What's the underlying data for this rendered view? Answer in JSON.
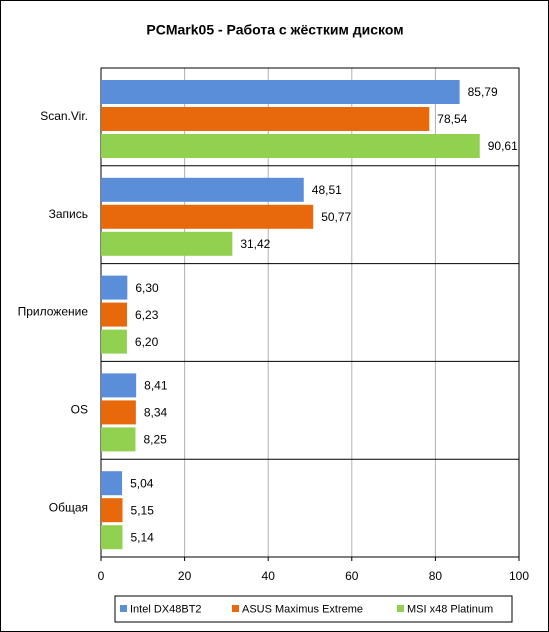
{
  "chart_data": {
    "type": "bar",
    "orientation": "horizontal",
    "title": "PCMark05 - Работа с жёстким диском",
    "categories": [
      "Scan.Vir.",
      "Запись",
      "Приложение",
      "OS",
      "Общая"
    ],
    "series": [
      {
        "name": "Intel DX48BT2",
        "color": "#5a8ed8",
        "values": [
          85.79,
          48.51,
          6.3,
          8.41,
          5.04
        ],
        "value_labels": [
          "85,79",
          "48,51",
          "6,30",
          "8,41",
          "5,04"
        ]
      },
      {
        "name": "ASUS Maximus Extreme",
        "color": "#e8690b",
        "values": [
          78.54,
          50.77,
          6.23,
          8.34,
          5.15
        ],
        "value_labels": [
          "78,54",
          "50,77",
          "6,23",
          "8,34",
          "5,15"
        ]
      },
      {
        "name": "MSI x48 Platinum",
        "color": "#92d050",
        "values": [
          90.61,
          31.42,
          6.2,
          8.25,
          5.14
        ],
        "value_labels": [
          "90,61",
          "31,42",
          "6,20",
          "8,25",
          "5,14"
        ]
      }
    ],
    "xlim": [
      0,
      100
    ],
    "xticks": [
      0,
      20,
      40,
      60,
      80,
      100
    ],
    "grid": true,
    "legend": "bottom"
  }
}
